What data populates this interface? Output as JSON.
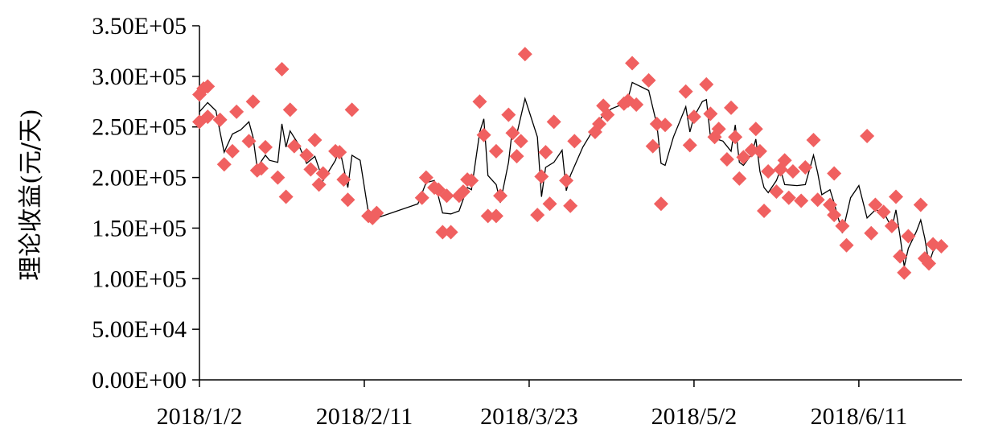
{
  "chart_data": {
    "type": "scatter",
    "ylabel": "理论收益(元/天)",
    "xlabel": "",
    "ylim": [
      0,
      350000
    ],
    "y_ticks": [
      0,
      50000,
      100000,
      150000,
      200000,
      250000,
      300000,
      350000
    ],
    "y_tick_labels": [
      "0.00E+00",
      "5.00E+04",
      "1.00E+05",
      "1.50E+05",
      "2.00E+05",
      "2.50E+05",
      "3.00E+05",
      "3.50E+05"
    ],
    "x_ticks": [
      "2018-01-02",
      "2018-02-11",
      "2018-03-23",
      "2018-05-02",
      "2018-06-11"
    ],
    "x_tick_labels": [
      "2018/1/2",
      "2018/2/11",
      "2018/3/23",
      "2018/5/2",
      "2018/6/11"
    ],
    "xlim": [
      "2018-01-02",
      "2018-07-06"
    ],
    "grid": false,
    "legend": "none",
    "colors": {
      "points": "#f06060",
      "line": "#000000",
      "axis": "#000000"
    },
    "series": [
      {
        "marker": "diamond",
        "points": [
          [
            "2018-01-02",
            282000
          ],
          [
            "2018-01-02",
            255000
          ],
          [
            "2018-01-03",
            288000
          ],
          [
            "2018-01-04",
            290000
          ],
          [
            "2018-01-04",
            260000
          ],
          [
            "2018-01-07",
            257000
          ],
          [
            "2018-01-08",
            213000
          ],
          [
            "2018-01-10",
            226000
          ],
          [
            "2018-01-11",
            265000
          ],
          [
            "2018-01-14",
            236000
          ],
          [
            "2018-01-15",
            275000
          ],
          [
            "2018-01-16",
            207000
          ],
          [
            "2018-01-17",
            209000
          ],
          [
            "2018-01-18",
            230000
          ],
          [
            "2018-01-21",
            200000
          ],
          [
            "2018-01-22",
            307000
          ],
          [
            "2018-01-23",
            181000
          ],
          [
            "2018-01-24",
            267000
          ],
          [
            "2018-01-25",
            231000
          ],
          [
            "2018-01-28",
            222000
          ],
          [
            "2018-01-29",
            208000
          ],
          [
            "2018-01-30",
            237000
          ],
          [
            "2018-01-31",
            193000
          ],
          [
            "2018-02-01",
            204000
          ],
          [
            "2018-02-04",
            226000
          ],
          [
            "2018-02-05",
            225000
          ],
          [
            "2018-02-06",
            198000
          ],
          [
            "2018-02-07",
            178000
          ],
          [
            "2018-02-08",
            267000
          ],
          [
            "2018-02-12",
            162000
          ],
          [
            "2018-02-13",
            160000
          ],
          [
            "2018-02-14",
            165000
          ],
          [
            "2018-02-25",
            180000
          ],
          [
            "2018-02-26",
            200000
          ],
          [
            "2018-02-28",
            190000
          ],
          [
            "2018-03-01",
            188000
          ],
          [
            "2018-03-02",
            146000
          ],
          [
            "2018-03-04",
            146000
          ],
          [
            "2018-03-03",
            182000
          ],
          [
            "2018-03-06",
            182000
          ],
          [
            "2018-03-07",
            186000
          ],
          [
            "2018-03-08",
            198000
          ],
          [
            "2018-03-09",
            197000
          ],
          [
            "2018-03-11",
            275000
          ],
          [
            "2018-03-12",
            242000
          ],
          [
            "2018-03-13",
            162000
          ],
          [
            "2018-03-15",
            226000
          ],
          [
            "2018-03-15",
            162000
          ],
          [
            "2018-03-16",
            182000
          ],
          [
            "2018-03-18",
            262000
          ],
          [
            "2018-03-19",
            244000
          ],
          [
            "2018-03-20",
            221000
          ],
          [
            "2018-03-21",
            236000
          ],
          [
            "2018-03-22",
            322000
          ],
          [
            "2018-03-25",
            163000
          ],
          [
            "2018-03-26",
            201000
          ],
          [
            "2018-03-27",
            225000
          ],
          [
            "2018-03-28",
            174000
          ],
          [
            "2018-03-29",
            255000
          ],
          [
            "2018-04-01",
            197000
          ],
          [
            "2018-04-02",
            172000
          ],
          [
            "2018-04-03",
            236000
          ],
          [
            "2018-04-08",
            245000
          ],
          [
            "2018-04-09",
            253000
          ],
          [
            "2018-04-10",
            271000
          ],
          [
            "2018-04-11",
            262000
          ],
          [
            "2018-04-15",
            273000
          ],
          [
            "2018-04-16",
            276000
          ],
          [
            "2018-04-17",
            313000
          ],
          [
            "2018-04-18",
            272000
          ],
          [
            "2018-04-21",
            296000
          ],
          [
            "2018-04-22",
            231000
          ],
          [
            "2018-04-23",
            253000
          ],
          [
            "2018-04-24",
            174000
          ],
          [
            "2018-04-25",
            252000
          ],
          [
            "2018-04-30",
            285000
          ],
          [
            "2018-05-01",
            232000
          ],
          [
            "2018-05-02",
            260000
          ],
          [
            "2018-05-05",
            292000
          ],
          [
            "2018-05-06",
            263000
          ],
          [
            "2018-05-07",
            240000
          ],
          [
            "2018-05-08",
            248000
          ],
          [
            "2018-05-10",
            218000
          ],
          [
            "2018-05-11",
            269000
          ],
          [
            "2018-05-12",
            240000
          ],
          [
            "2018-05-13",
            199000
          ],
          [
            "2018-05-14",
            220000
          ],
          [
            "2018-05-16",
            227000
          ],
          [
            "2018-05-17",
            248000
          ],
          [
            "2018-05-18",
            226000
          ],
          [
            "2018-05-19",
            167000
          ],
          [
            "2018-05-20",
            206000
          ],
          [
            "2018-05-22",
            186000
          ],
          [
            "2018-05-23",
            208000
          ],
          [
            "2018-05-24",
            217000
          ],
          [
            "2018-05-25",
            180000
          ],
          [
            "2018-05-26",
            206000
          ],
          [
            "2018-05-28",
            177000
          ],
          [
            "2018-05-29",
            210000
          ],
          [
            "2018-05-31",
            237000
          ],
          [
            "2018-06-01",
            178000
          ],
          [
            "2018-06-04",
            173000
          ],
          [
            "2018-06-05",
            204000
          ],
          [
            "2018-06-05",
            163000
          ],
          [
            "2018-06-07",
            152000
          ],
          [
            "2018-06-08",
            133000
          ],
          [
            "2018-06-13",
            241000
          ],
          [
            "2018-06-14",
            145000
          ],
          [
            "2018-06-15",
            173000
          ],
          [
            "2018-06-17",
            166000
          ],
          [
            "2018-06-19",
            152000
          ],
          [
            "2018-06-20",
            181000
          ],
          [
            "2018-06-21",
            122000
          ],
          [
            "2018-06-22",
            106000
          ],
          [
            "2018-06-23",
            142000
          ],
          [
            "2018-06-26",
            173000
          ],
          [
            "2018-06-27",
            120000
          ],
          [
            "2018-06-28",
            115000
          ],
          [
            "2018-06-29",
            134000
          ],
          [
            "2018-07-01",
            132000
          ]
        ]
      },
      {
        "marker": "none",
        "points": [
          [
            "2018-01-02",
            265000
          ],
          [
            "2018-01-04",
            274000
          ],
          [
            "2018-01-06",
            266000
          ],
          [
            "2018-01-07",
            245000
          ],
          [
            "2018-01-08",
            225000
          ],
          [
            "2018-01-10",
            243000
          ],
          [
            "2018-01-12",
            247000
          ],
          [
            "2018-01-14",
            255000
          ],
          [
            "2018-01-15",
            240000
          ],
          [
            "2018-01-16",
            210000
          ],
          [
            "2018-01-18",
            222000
          ],
          [
            "2018-01-19",
            217000
          ],
          [
            "2018-01-21",
            215000
          ],
          [
            "2018-01-22",
            253000
          ],
          [
            "2018-01-23",
            230000
          ],
          [
            "2018-01-24",
            246000
          ],
          [
            "2018-01-26",
            233000
          ],
          [
            "2018-01-28",
            214000
          ],
          [
            "2018-01-30",
            221000
          ],
          [
            "2018-02-01",
            197000
          ],
          [
            "2018-02-04",
            217000
          ],
          [
            "2018-02-05",
            229000
          ],
          [
            "2018-02-07",
            190000
          ],
          [
            "2018-02-08",
            222000
          ],
          [
            "2018-02-10",
            217000
          ],
          [
            "2018-02-12",
            165000
          ],
          [
            "2018-02-14",
            160000
          ],
          [
            "2018-02-24",
            174000
          ],
          [
            "2018-02-26",
            195000
          ],
          [
            "2018-02-28",
            197000
          ],
          [
            "2018-03-02",
            165000
          ],
          [
            "2018-03-04",
            164000
          ],
          [
            "2018-03-06",
            167000
          ],
          [
            "2018-03-08",
            190000
          ],
          [
            "2018-03-09",
            188000
          ],
          [
            "2018-03-11",
            245000
          ],
          [
            "2018-03-12",
            258000
          ],
          [
            "2018-03-13",
            202000
          ],
          [
            "2018-03-15",
            193000
          ],
          [
            "2018-03-16",
            175000
          ],
          [
            "2018-03-18",
            215000
          ],
          [
            "2018-03-19",
            250000
          ],
          [
            "2018-03-20",
            243000
          ],
          [
            "2018-03-22",
            278000
          ],
          [
            "2018-03-25",
            240000
          ],
          [
            "2018-03-26",
            181000
          ],
          [
            "2018-03-27",
            210000
          ],
          [
            "2018-03-29",
            215000
          ],
          [
            "2018-03-31",
            227000
          ],
          [
            "2018-04-01",
            187000
          ],
          [
            "2018-04-02",
            202000
          ],
          [
            "2018-04-05",
            230000
          ],
          [
            "2018-04-08",
            250000
          ],
          [
            "2018-04-10",
            262000
          ],
          [
            "2018-04-12",
            268000
          ],
          [
            "2018-04-15",
            273000
          ],
          [
            "2018-04-16",
            278000
          ],
          [
            "2018-04-17",
            294000
          ],
          [
            "2018-04-21",
            286000
          ],
          [
            "2018-04-23",
            252000
          ],
          [
            "2018-04-24",
            214000
          ],
          [
            "2018-04-25",
            212000
          ],
          [
            "2018-04-27",
            240000
          ],
          [
            "2018-04-30",
            270000
          ],
          [
            "2018-05-01",
            245000
          ],
          [
            "2018-05-02",
            260000
          ],
          [
            "2018-05-04",
            275000
          ],
          [
            "2018-05-05",
            277000
          ],
          [
            "2018-05-06",
            240000
          ],
          [
            "2018-05-09",
            236000
          ],
          [
            "2018-05-11",
            226000
          ],
          [
            "2018-05-12",
            252000
          ],
          [
            "2018-05-13",
            215000
          ],
          [
            "2018-05-14",
            212000
          ],
          [
            "2018-05-16",
            223000
          ],
          [
            "2018-05-17",
            238000
          ],
          [
            "2018-05-18",
            206000
          ],
          [
            "2018-05-19",
            190000
          ],
          [
            "2018-05-20",
            185000
          ],
          [
            "2018-05-22",
            197000
          ],
          [
            "2018-05-23",
            208000
          ],
          [
            "2018-05-24",
            193000
          ],
          [
            "2018-05-27",
            192000
          ],
          [
            "2018-05-29",
            193000
          ],
          [
            "2018-05-31",
            222000
          ],
          [
            "2018-06-01",
            205000
          ],
          [
            "2018-06-02",
            183000
          ],
          [
            "2018-06-04",
            188000
          ],
          [
            "2018-06-05",
            175000
          ],
          [
            "2018-06-07",
            145000
          ],
          [
            "2018-06-09",
            180000
          ],
          [
            "2018-06-11",
            192000
          ],
          [
            "2018-06-13",
            160000
          ],
          [
            "2018-06-15",
            168000
          ],
          [
            "2018-06-17",
            166000
          ],
          [
            "2018-06-19",
            150000
          ],
          [
            "2018-06-20",
            168000
          ],
          [
            "2018-06-21",
            142000
          ],
          [
            "2018-06-22",
            112000
          ],
          [
            "2018-06-23",
            130000
          ],
          [
            "2018-06-25",
            147000
          ],
          [
            "2018-06-26",
            158000
          ],
          [
            "2018-06-27",
            140000
          ],
          [
            "2018-06-28",
            115000
          ],
          [
            "2018-06-29",
            127000
          ],
          [
            "2018-07-01",
            137000
          ]
        ]
      }
    ]
  }
}
